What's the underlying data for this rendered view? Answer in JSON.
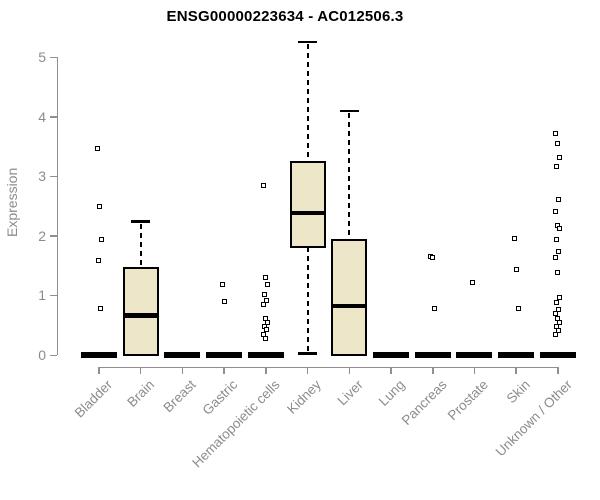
{
  "title": "ENSG00000223634 - AC012506.3",
  "colors": {
    "box_fill": "#EDE6C9",
    "box_border": "#000000",
    "median": "#000000",
    "zero_bar": "#000000",
    "outlier": "#000000",
    "axis": "#8f8f8f",
    "labels": "#8c8c8c",
    "title": "#000000",
    "background": "#ffffff"
  },
  "chart_data": {
    "type": "boxplot",
    "title": "ENSG00000223634 - AC012506.3",
    "xlabel": "",
    "ylabel": "Expression",
    "ylim": [
      0,
      5.3
    ],
    "yticks": [
      0,
      1,
      2,
      3,
      4,
      5
    ],
    "grid": false,
    "legend": false,
    "categories": [
      "Bladder",
      "Brain",
      "Breast",
      "Gastric",
      "Hematopoietic cells",
      "Kidney",
      "Liver",
      "Lung",
      "Pancreas",
      "Prostate",
      "Skin",
      "Unknown / Other"
    ],
    "series": [
      {
        "category": "Bladder",
        "collapsed": true,
        "q1": 0,
        "median": 0,
        "q3": 0,
        "whisker_low": 0,
        "whisker_high": 0,
        "outliers": [
          3.47,
          2.5,
          1.93,
          1.58,
          0.78
        ]
      },
      {
        "category": "Brain",
        "collapsed": false,
        "q1": 0,
        "median": 0.66,
        "q3": 1.46,
        "whisker_low": 0,
        "whisker_high": 2.24,
        "outliers": []
      },
      {
        "category": "Breast",
        "collapsed": true,
        "q1": 0,
        "median": 0,
        "q3": 0,
        "whisker_low": 0,
        "whisker_high": 0,
        "outliers": []
      },
      {
        "category": "Gastric",
        "collapsed": true,
        "q1": 0,
        "median": 0,
        "q3": 0,
        "whisker_low": 0,
        "whisker_high": 0,
        "outliers": [
          1.19,
          0.89
        ]
      },
      {
        "category": "Hematopoietic cells",
        "collapsed": true,
        "q1": 0,
        "median": 0,
        "q3": 0,
        "whisker_low": 0,
        "whisker_high": 0,
        "outliers": [
          2.85,
          1.3,
          1.19,
          1.01,
          0.92,
          0.84,
          0.62,
          0.55,
          0.48,
          0.42,
          0.35,
          0.28
        ]
      },
      {
        "category": "Kidney",
        "collapsed": false,
        "q1": 1.82,
        "median": 2.38,
        "q3": 3.23,
        "whisker_low": 0.03,
        "whisker_high": 5.26,
        "outliers": []
      },
      {
        "category": "Liver",
        "collapsed": false,
        "q1": 0,
        "median": 0.82,
        "q3": 1.93,
        "whisker_low": 0,
        "whisker_high": 4.1,
        "outliers": []
      },
      {
        "category": "Lung",
        "collapsed": true,
        "q1": 0,
        "median": 0,
        "q3": 0,
        "whisker_low": 0,
        "whisker_high": 0,
        "outliers": []
      },
      {
        "category": "Pancreas",
        "collapsed": true,
        "q1": 0,
        "median": 0,
        "q3": 0,
        "whisker_low": 0,
        "whisker_high": 0,
        "outliers": [
          1.66,
          1.63,
          0.78
        ]
      },
      {
        "category": "Prostate",
        "collapsed": true,
        "q1": 0,
        "median": 0,
        "q3": 0,
        "whisker_low": 0,
        "whisker_high": 0,
        "outliers": [
          1.21
        ]
      },
      {
        "category": "Skin",
        "collapsed": true,
        "q1": 0,
        "median": 0,
        "q3": 0,
        "whisker_low": 0,
        "whisker_high": 0,
        "outliers": [
          1.96,
          1.44,
          0.78
        ]
      },
      {
        "category": "Unknown / Other",
        "collapsed": true,
        "q1": 0,
        "median": 0,
        "q3": 0,
        "whisker_low": 0,
        "whisker_high": 0,
        "outliers": [
          3.72,
          3.55,
          3.31,
          3.16,
          2.61,
          2.4,
          2.17,
          2.12,
          1.93,
          1.73,
          1.64,
          1.39,
          0.96,
          0.88,
          0.76,
          0.69,
          0.62,
          0.55,
          0.48,
          0.41,
          0.34
        ]
      }
    ]
  }
}
